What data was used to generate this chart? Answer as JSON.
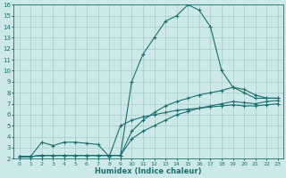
{
  "xlabel": "Humidex (Indice chaleur)",
  "bg_color": "#cce8e8",
  "grid_color": "#aacccc",
  "line_color": "#1a7070",
  "xlim": [
    -0.5,
    23.5
  ],
  "ylim": [
    2,
    16
  ],
  "xticks": [
    0,
    1,
    2,
    3,
    4,
    5,
    6,
    7,
    8,
    9,
    10,
    11,
    12,
    13,
    14,
    15,
    16,
    17,
    18,
    19,
    20,
    21,
    22,
    23
  ],
  "yticks": [
    2,
    3,
    4,
    5,
    6,
    7,
    8,
    9,
    10,
    11,
    12,
    13,
    14,
    15,
    16
  ],
  "series": [
    {
      "x": [
        0,
        1,
        2,
        3,
        4,
        5,
        6,
        7,
        8,
        9,
        10,
        11,
        12,
        13,
        14,
        15,
        16,
        17,
        18,
        19,
        20,
        21,
        22,
        23
      ],
      "y": [
        2.2,
        2.2,
        2.3,
        2.3,
        2.3,
        2.3,
        2.3,
        2.3,
        2.3,
        2.3,
        9.0,
        11.5,
        13.0,
        14.5,
        15.0,
        16.0,
        15.5,
        14.0,
        10.0,
        8.5,
        8.0,
        7.5,
        7.5,
        7.5
      ]
    },
    {
      "x": [
        0,
        1,
        2,
        3,
        4,
        5,
        6,
        7,
        8,
        9,
        10,
        11,
        12,
        13,
        14,
        15,
        16,
        17,
        18,
        19,
        20,
        21,
        22,
        23
      ],
      "y": [
        2.2,
        2.2,
        2.3,
        2.3,
        2.3,
        2.3,
        2.3,
        2.3,
        2.3,
        2.3,
        4.5,
        5.5,
        6.2,
        6.8,
        7.2,
        7.5,
        7.8,
        8.0,
        8.2,
        8.5,
        8.3,
        7.8,
        7.5,
        7.5
      ]
    },
    {
      "x": [
        0,
        1,
        2,
        3,
        4,
        5,
        6,
        7,
        8,
        9,
        10,
        11,
        12,
        13,
        14,
        15,
        16,
        17,
        18,
        19,
        20,
        21,
        22,
        23
      ],
      "y": [
        2.2,
        2.2,
        2.3,
        2.3,
        2.3,
        2.3,
        2.3,
        2.3,
        2.3,
        2.3,
        3.8,
        4.5,
        5.0,
        5.5,
        6.0,
        6.3,
        6.6,
        6.8,
        7.0,
        7.2,
        7.1,
        7.0,
        7.2,
        7.3
      ]
    },
    {
      "x": [
        0,
        1,
        2,
        3,
        4,
        5,
        6,
        7,
        8,
        9,
        10,
        11,
        12,
        13,
        14,
        15,
        16,
        17,
        18,
        19,
        20,
        21,
        22,
        23
      ],
      "y": [
        2.2,
        2.2,
        3.5,
        3.2,
        3.5,
        3.5,
        3.4,
        3.3,
        2.2,
        5.0,
        5.5,
        5.8,
        6.0,
        6.2,
        6.4,
        6.5,
        6.6,
        6.7,
        6.8,
        6.9,
        6.8,
        6.8,
        6.9,
        7.0
      ]
    }
  ]
}
